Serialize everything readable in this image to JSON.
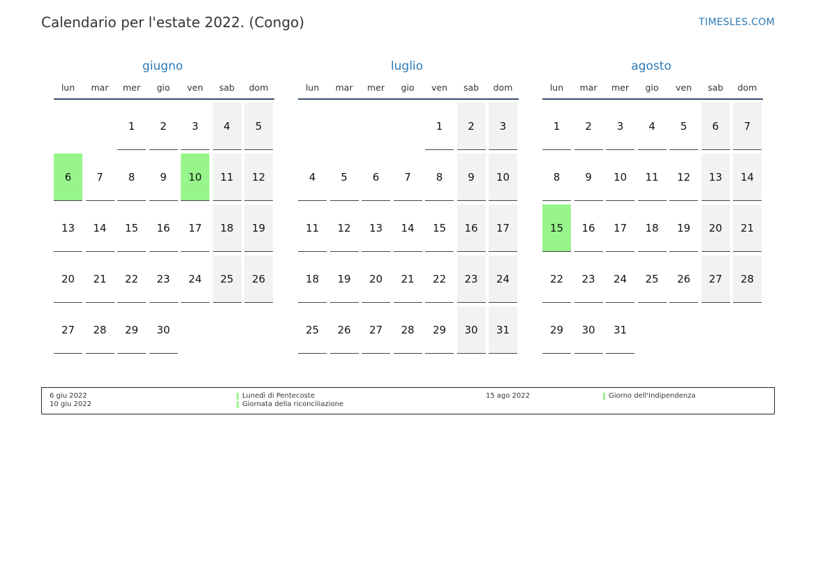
{
  "header": {
    "title": "Calendario per l'estate 2022. (Congo)",
    "site": "TIMESLES.COM"
  },
  "colors": {
    "accent": "#2a7ab8",
    "holiday": "#98f58c",
    "weekend": "#f2f2f2"
  },
  "weekdays": [
    "lun",
    "mar",
    "mer",
    "gio",
    "ven",
    "sab",
    "dom"
  ],
  "months": [
    {
      "name": "giugno",
      "first_weekday": 2,
      "days": 30,
      "holidays": [
        6,
        10
      ]
    },
    {
      "name": "luglio",
      "first_weekday": 4,
      "days": 31,
      "holidays": []
    },
    {
      "name": "agosto",
      "first_weekday": 0,
      "days": 31,
      "holidays": [
        15
      ]
    }
  ],
  "legend": [
    {
      "date": "6 giu 2022",
      "name": "Lunedì di Pentecoste"
    },
    {
      "date": "10 giu 2022",
      "name": "Giornata della riconciliazione"
    },
    {
      "date": "15 ago 2022",
      "name": "Giorno dell'Indipendenza"
    }
  ]
}
